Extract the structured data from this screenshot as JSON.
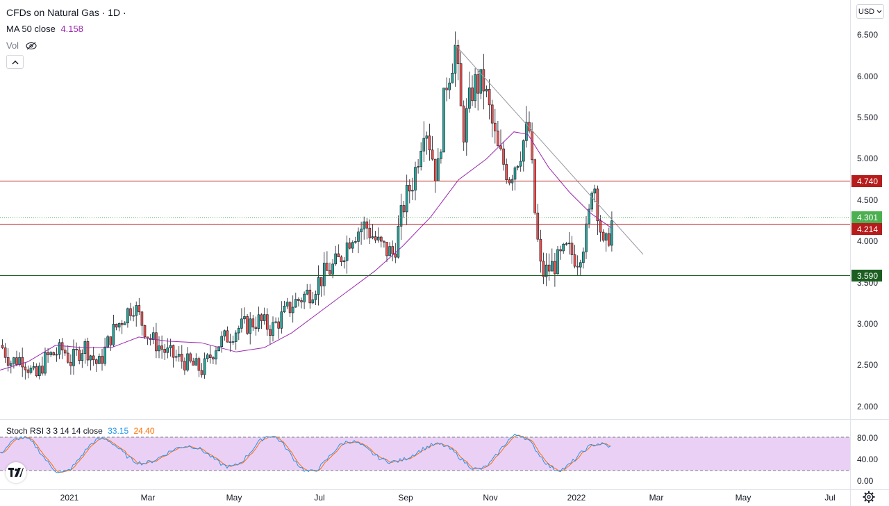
{
  "header": {
    "title": "CFDs on Natural Gas · 1D ·",
    "ma_label": "MA 50 close",
    "ma_value": "4.158",
    "vol_label": "Vol",
    "collapse_icon": "chevron-up-icon",
    "vol_visibility_icon": "eye-crossed-icon"
  },
  "currency_button": "USD",
  "price_axis": {
    "ticks": [
      "6.500",
      "6.000",
      "5.500",
      "5.000",
      "4.500",
      "4.000",
      "3.500",
      "3.000",
      "2.500",
      "2.000"
    ]
  },
  "price_levels": [
    {
      "id": "resistance",
      "label": "4.740",
      "value": 4.74,
      "color": "#b71c1c"
    },
    {
      "id": "current",
      "label": "4.301",
      "value": 4.301,
      "color": "#4caf50"
    },
    {
      "id": "support-mid",
      "label": "4.214",
      "value": 4.214,
      "color": "#b71c1c"
    },
    {
      "id": "support-low",
      "label": "3.590",
      "value": 3.59,
      "color": "#1b5e20"
    }
  ],
  "time_axis": {
    "labels": [
      "2021",
      "Mar",
      "May",
      "Jul",
      "Sep",
      "Nov",
      "2022",
      "Mar",
      "May",
      "Jul"
    ]
  },
  "stoch_rsi": {
    "label": "Stoch RSI 3 3 14 14 close",
    "k_value": "33.15",
    "d_value": "24.40",
    "k_color": "#2196f3",
    "d_color": "#ff6d00",
    "ticks": [
      "80.00",
      "40.00",
      "0.00"
    ],
    "band": [
      20,
      80
    ]
  },
  "colors": {
    "up": "#26a69a",
    "down": "#ef5350",
    "ma": "#9c27b0",
    "band_fill": "#e1bee7"
  },
  "chart_data": {
    "type": "candlestick",
    "symbol": "CFDs on Natural Gas",
    "interval": "1D",
    "ylim": [
      1.75,
      6.75
    ],
    "series": [
      {
        "name": "price",
        "x": [
          "2020-12",
          "2021-01",
          "2021-02",
          "2021-03",
          "2021-04",
          "2021-05",
          "2021-06",
          "2021-07",
          "2021-08",
          "2021-09",
          "2021-10",
          "2021-11",
          "2021-12",
          "2022-01",
          "2022-02"
        ],
        "values": [
          2.6,
          2.45,
          2.9,
          2.65,
          2.6,
          2.9,
          3.2,
          3.65,
          4.05,
          5.2,
          5.6,
          5.05,
          3.7,
          4.05,
          4.3
        ]
      },
      {
        "name": "MA 50 close",
        "x": [
          "2020-12",
          "2021-01",
          "2021-02",
          "2021-03",
          "2021-04",
          "2021-05",
          "2021-06",
          "2021-07",
          "2021-08",
          "2021-09",
          "2021-10",
          "2021-11",
          "2021-12",
          "2022-01",
          "2022-02"
        ],
        "values": [
          2.55,
          2.65,
          2.7,
          2.75,
          2.75,
          2.65,
          2.95,
          3.45,
          3.8,
          4.35,
          5.0,
          5.3,
          4.7,
          4.25,
          4.158
        ]
      }
    ],
    "horizontal_lines": [
      4.74,
      4.214,
      3.59
    ],
    "trend_line": {
      "from": [
        "2021-10-06",
        6.42
      ],
      "to": [
        "2022-02-10",
        3.83
      ]
    }
  }
}
